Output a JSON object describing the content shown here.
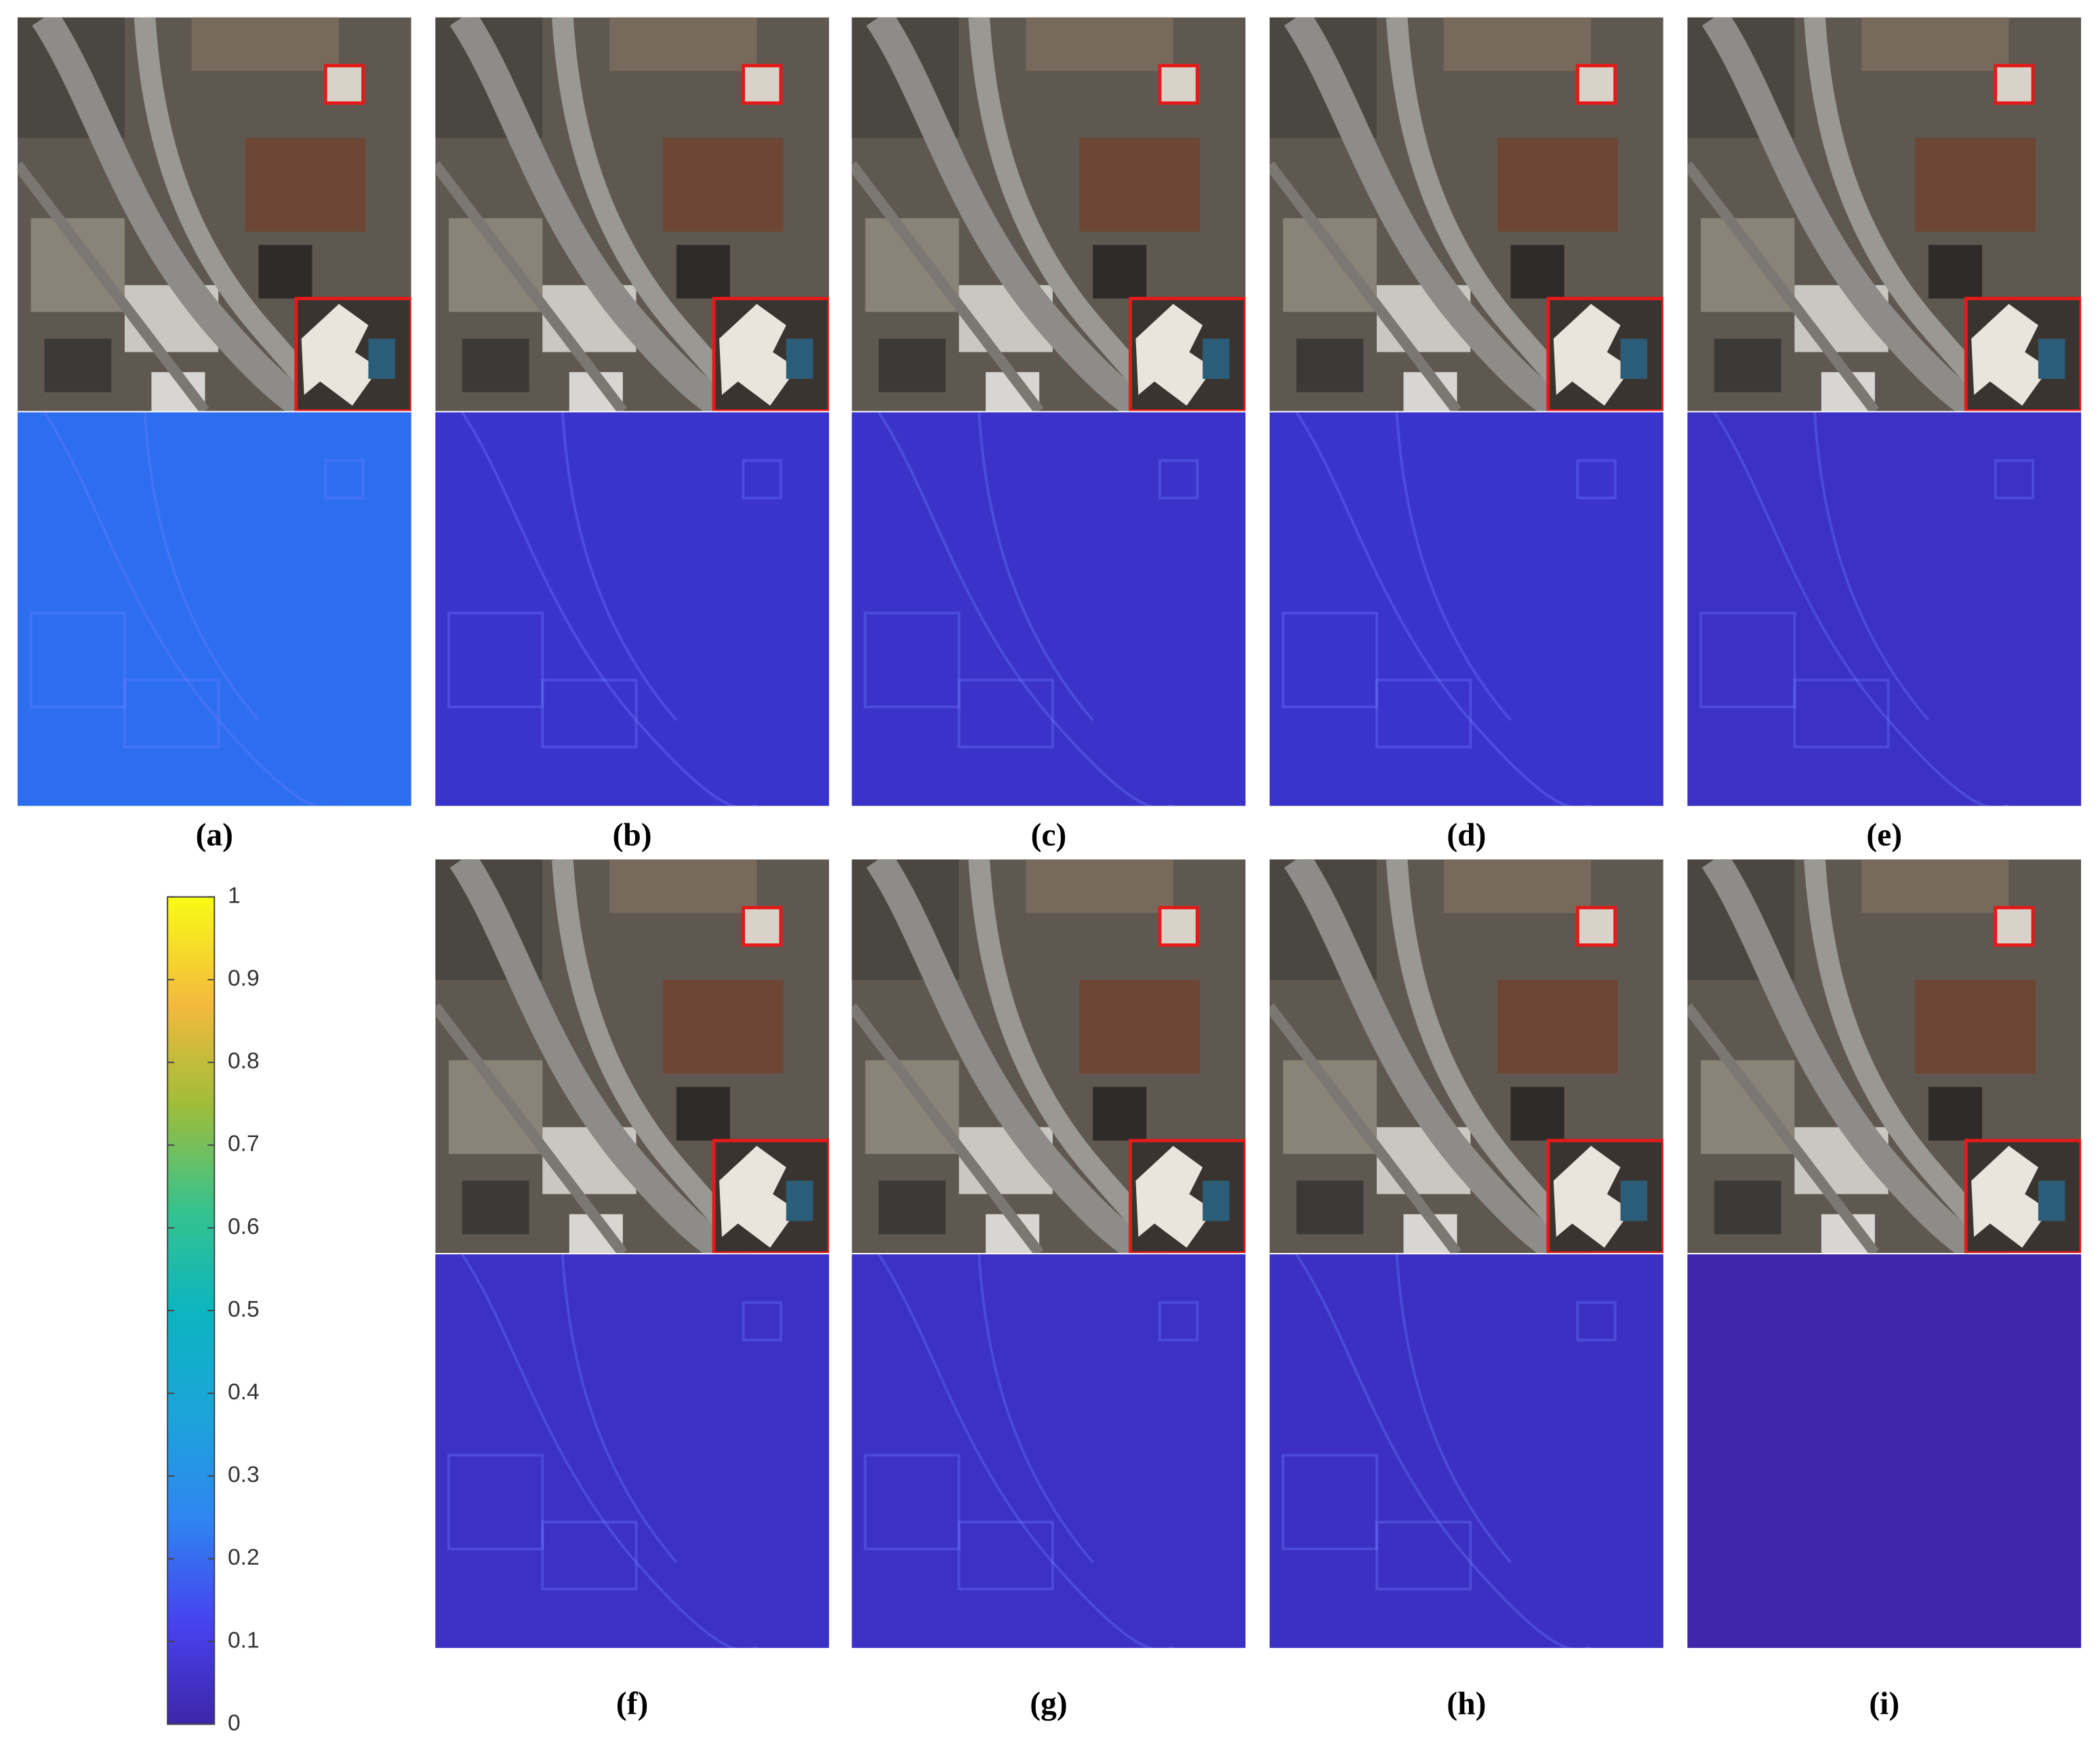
{
  "panels": [
    {
      "label": "(a)"
    },
    {
      "label": "(b)"
    },
    {
      "label": "(c)"
    },
    {
      "label": "(d)"
    },
    {
      "label": "(e)"
    },
    {
      "label": "(f)"
    },
    {
      "label": "(g)"
    },
    {
      "label": "(h)"
    },
    {
      "label": "(i)"
    }
  ],
  "colorbar": {
    "lim": [
      0,
      1
    ],
    "ticks": [
      0,
      0.1,
      0.2,
      0.3,
      0.4,
      0.5,
      0.6,
      0.7,
      0.8,
      0.9,
      1
    ]
  }
}
